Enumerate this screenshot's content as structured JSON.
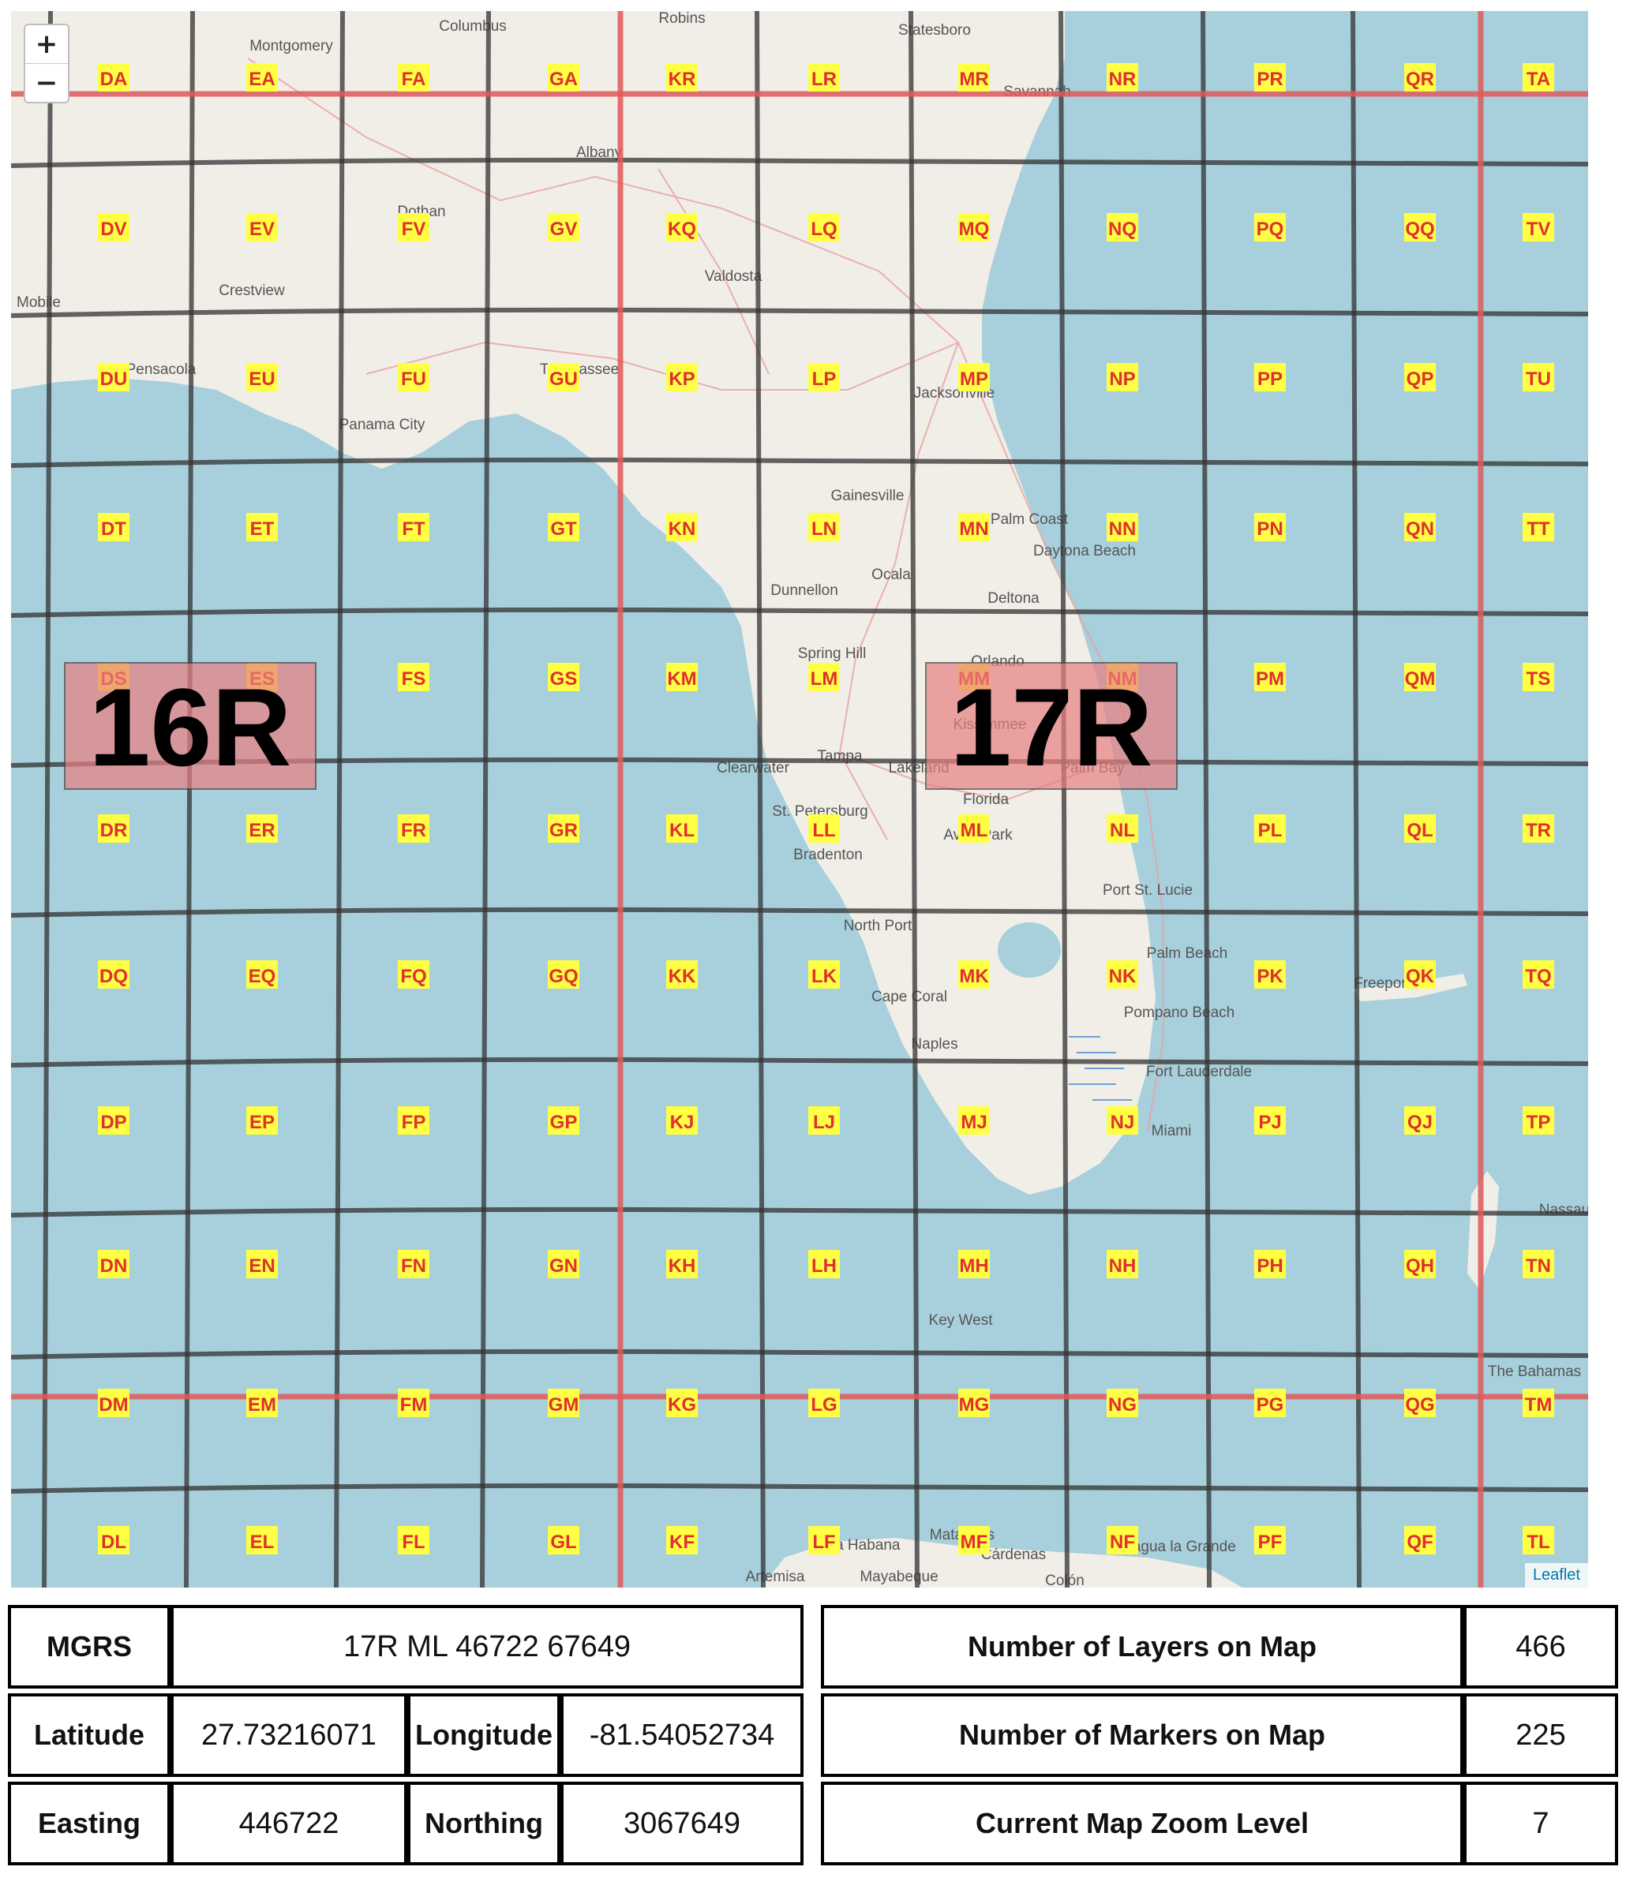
{
  "map": {
    "zoom_in_label": "+",
    "zoom_out_label": "−",
    "attribution": "Leaflet",
    "zone_labels": [
      "16R",
      "17R"
    ],
    "grid_cells": [
      [
        "DA",
        "EA",
        "FA",
        "GA",
        "KR",
        "LR",
        "MR",
        "NR",
        "PR",
        "QR",
        "TA"
      ],
      [
        "DV",
        "EV",
        "FV",
        "GV",
        "KQ",
        "LQ",
        "MQ",
        "NQ",
        "PQ",
        "QQ",
        "TV"
      ],
      [
        "DU",
        "EU",
        "FU",
        "GU",
        "KP",
        "LP",
        "MP",
        "NP",
        "PP",
        "QP",
        "TU"
      ],
      [
        "DT",
        "ET",
        "FT",
        "GT",
        "KN",
        "LN",
        "MN",
        "NN",
        "PN",
        "QN",
        "TT"
      ],
      [
        "DS",
        "ES",
        "FS",
        "GS",
        "KM",
        "LM",
        "MM",
        "NM",
        "PM",
        "QM",
        "TS"
      ],
      [
        "DR",
        "ER",
        "FR",
        "GR",
        "KL",
        "LL",
        "ML",
        "NL",
        "PL",
        "QL",
        "TR"
      ],
      [
        "DQ",
        "EQ",
        "FQ",
        "GQ",
        "KK",
        "LK",
        "MK",
        "NK",
        "PK",
        "QK",
        "TQ"
      ],
      [
        "DP",
        "EP",
        "FP",
        "GP",
        "KJ",
        "LJ",
        "MJ",
        "NJ",
        "PJ",
        "QJ",
        "TP"
      ],
      [
        "DN",
        "EN",
        "FN",
        "GN",
        "KH",
        "LH",
        "MH",
        "NH",
        "PH",
        "QH",
        "TN"
      ],
      [
        "DM",
        "EM",
        "FM",
        "GM",
        "KG",
        "LG",
        "MG",
        "NG",
        "PG",
        "QG",
        "TM"
      ],
      [
        "DL",
        "EL",
        "FL",
        "GL",
        "KF",
        "LF",
        "MF",
        "NF",
        "PF",
        "QF",
        "TL"
      ]
    ],
    "places": [
      "Montgomery",
      "Columbus",
      "Robins",
      "Statesboro",
      "Savannah",
      "Albany",
      "Dothan",
      "Crestview",
      "Mobile",
      "Pensacola",
      "Valdosta",
      "Tallahassee",
      "Panama City",
      "Jacksonville",
      "Gainesville",
      "Palm Coast",
      "Daytona Beach",
      "Ocala",
      "Dunnellon",
      "Deltona",
      "Spring Hill",
      "Orlando",
      "Kissimmee",
      "Tampa",
      "Clearwater",
      "Lakeland",
      "Palm Bay",
      "St. Petersburg",
      "Florida",
      "Avon Park",
      "Bradenton",
      "Port St. Lucie",
      "North Port",
      "Palm Beach",
      "Cape Coral",
      "Pompano Beach",
      "Naples",
      "Fort Lauderdale",
      "Miami",
      "Freeport",
      "Nassau",
      "Key West",
      "The Bahamas",
      "La Habana",
      "Matanzas",
      "Cárdenas",
      "Sagua la Grande",
      "Artemisa",
      "Mayabeque",
      "Colón"
    ]
  },
  "info_left": {
    "mgrs_label": "MGRS",
    "mgrs_value": "17R ML 46722 67649",
    "latitude_label": "Latitude",
    "latitude_value": "27.73216071",
    "longitude_label": "Longitude",
    "longitude_value": "-81.54052734",
    "easting_label": "Easting",
    "easting_value": "446722",
    "northing_label": "Northing",
    "northing_value": "3067649"
  },
  "info_right": {
    "layers_label": "Number of Layers on Map",
    "layers_value": "466",
    "markers_label": "Number of Markers on Map",
    "markers_value": "225",
    "zoom_label": "Current Map Zoom Level",
    "zoom_value": "7"
  },
  "colors": {
    "water": "#a8d0dc",
    "land": "#f1eee8",
    "grid": "#333333",
    "zone_line": "#e05a5a",
    "label_bg": "#ffff44",
    "label_text": "#e03030"
  }
}
